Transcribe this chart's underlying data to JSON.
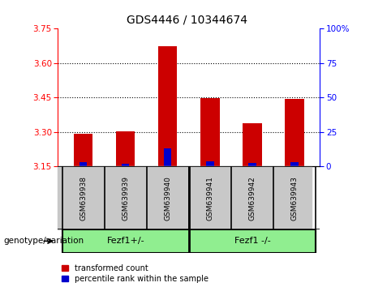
{
  "title": "GDS4446 / 10344674",
  "samples": [
    "GSM639938",
    "GSM639939",
    "GSM639940",
    "GSM639941",
    "GSM639942",
    "GSM639943"
  ],
  "red_values": [
    3.293,
    3.303,
    3.673,
    3.447,
    3.337,
    3.443
  ],
  "blue_values": [
    3.168,
    3.162,
    3.228,
    3.172,
    3.165,
    3.17
  ],
  "baseline": 3.15,
  "ylim_left": [
    3.15,
    3.75
  ],
  "ylim_right": [
    0,
    100
  ],
  "left_ticks": [
    3.15,
    3.3,
    3.45,
    3.6,
    3.75
  ],
  "right_ticks": [
    0,
    25,
    50,
    75,
    100
  ],
  "bar_width": 0.45,
  "red_color": "#CC0000",
  "blue_color": "#0000CC",
  "bg_color_labels": "#C8C8C8",
  "bg_color_geno": "#90EE90",
  "legend_red": "transformed count",
  "legend_blue": "percentile rank within the sample",
  "genotype_label": "genotype/variation",
  "group1_label": "Fezf1+/-",
  "group2_label": "Fezf1 -/-",
  "grid_lines": [
    3.3,
    3.45,
    3.6
  ],
  "title_fontsize": 10,
  "tick_fontsize": 7.5,
  "label_fontsize": 6.5,
  "geno_fontsize": 8,
  "legend_fontsize": 7
}
